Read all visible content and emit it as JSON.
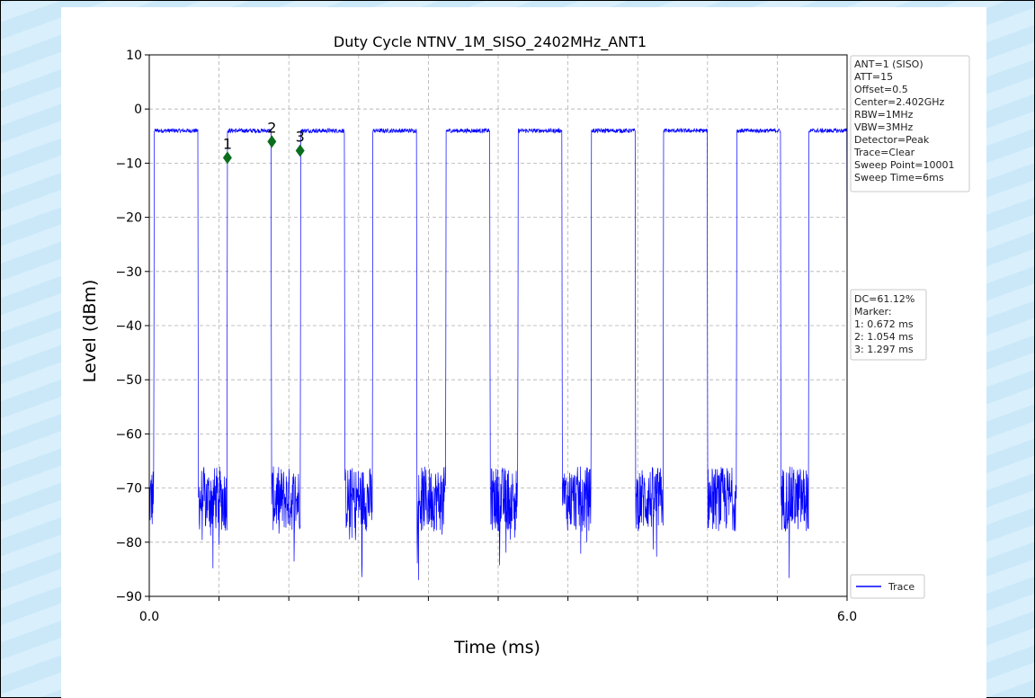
{
  "chart_data": {
    "type": "line",
    "title": "Duty Cycle NTNV_1M_SISO_2402MHz_ANT1",
    "xlabel": "Time (ms)",
    "ylabel": "Level (dBm)",
    "xlim": [
      0.0,
      6.0
    ],
    "ylim": [
      -90,
      10
    ],
    "x_tick_labels": [
      "0.0",
      "6.0"
    ],
    "x_minor_ticks_ms": [
      0.6,
      1.2,
      1.8,
      2.4,
      3.0,
      3.6,
      4.2,
      4.8,
      5.4
    ],
    "y_ticks": [
      10,
      0,
      -10,
      -20,
      -30,
      -40,
      -50,
      -60,
      -70,
      -80,
      -90
    ],
    "y_tick_labels": [
      "10",
      "0",
      "−10",
      "−20",
      "−30",
      "−40",
      "−50",
      "−60",
      "−70",
      "−80",
      "−90"
    ],
    "grid": true,
    "legend": {
      "placement": "bottom-right",
      "entries": [
        "Trace"
      ]
    },
    "series": [
      {
        "name": "Trace",
        "color": "#0000ff",
        "on_level_dBm": -4,
        "off_level_dBm": -72,
        "edge_level_dBm": -41,
        "burst_on_intervals_ms": [
          [
            0.04,
            0.42
          ],
          [
            0.67,
            1.05
          ],
          [
            1.3,
            1.68
          ],
          [
            1.92,
            2.3
          ],
          [
            2.55,
            2.93
          ],
          [
            3.17,
            3.55
          ],
          [
            3.8,
            4.18
          ],
          [
            4.42,
            4.8
          ],
          [
            5.05,
            5.43
          ],
          [
            5.67,
            6.0
          ]
        ]
      }
    ],
    "markers": [
      {
        "label": "1",
        "x": 0.672,
        "y": -9,
        "color": "#0b6e1f"
      },
      {
        "label": "2",
        "x": 1.054,
        "y": -6,
        "color": "#0b6e1f"
      },
      {
        "label": "3",
        "x": 1.297,
        "y": -7.7,
        "color": "#0b6e1f"
      }
    ],
    "settings_box": [
      "ANT=1 (SISO)",
      "ATT=15",
      "Offset=0.5",
      "Center=2.402GHz",
      "RBW=1MHz",
      "VBW=3MHz",
      "Detector=Peak",
      "Trace=Clear",
      "Sweep Point=10001",
      "Sweep Time=6ms"
    ],
    "result_box": [
      "DC=61.12%",
      "Marker:",
      "1: 0.672 ms",
      "2: 1.054 ms",
      "3: 1.297 ms"
    ]
  }
}
